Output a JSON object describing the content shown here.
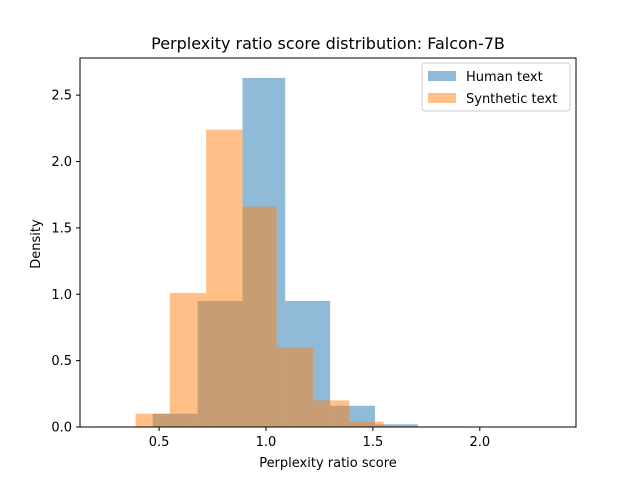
{
  "chart_data": {
    "type": "bar",
    "title": "Perplexity ratio score distribution: Falcon-7B",
    "xlabel": "Perplexity ratio score",
    "ylabel": "Density",
    "xlim": [
      0.13,
      2.45
    ],
    "ylim": [
      0,
      2.78
    ],
    "xticks": [
      0.5,
      1.0,
      1.5,
      2.0
    ],
    "xtick_labels": [
      "0.5",
      "1.0",
      "1.5",
      "2.0"
    ],
    "yticks": [
      0.0,
      0.5,
      1.0,
      1.5,
      2.0,
      2.5
    ],
    "ytick_labels": [
      "0.0",
      "0.5",
      "1.0",
      "1.5",
      "2.0",
      "2.5"
    ],
    "grid": false,
    "legend": "top-right",
    "series": [
      {
        "name": "Human text",
        "color": "#1f77b4",
        "opacity": 0.5,
        "bins": [
          {
            "x0": 0.47,
            "x1": 0.68,
            "value": 0.1
          },
          {
            "x0": 0.68,
            "x1": 0.89,
            "value": 0.95
          },
          {
            "x0": 0.89,
            "x1": 1.09,
            "value": 2.63
          },
          {
            "x0": 1.09,
            "x1": 1.3,
            "value": 0.95
          },
          {
            "x0": 1.3,
            "x1": 1.51,
            "value": 0.16
          },
          {
            "x0": 1.51,
            "x1": 1.71,
            "value": 0.02
          },
          {
            "x0": 1.71,
            "x1": 1.92,
            "value": 0.0
          },
          {
            "x0": 1.92,
            "x1": 2.13,
            "value": 0.0
          },
          {
            "x0": 2.13,
            "x1": 2.33,
            "value": 0.0
          }
        ]
      },
      {
        "name": "Synthetic text",
        "color": "#ff7f0e",
        "opacity": 0.5,
        "bins": [
          {
            "x0": 0.22,
            "x1": 0.39,
            "value": 0.005
          },
          {
            "x0": 0.39,
            "x1": 0.55,
            "value": 0.1
          },
          {
            "x0": 0.55,
            "x1": 0.72,
            "value": 1.01
          },
          {
            "x0": 0.72,
            "x1": 0.89,
            "value": 2.24
          },
          {
            "x0": 0.89,
            "x1": 1.05,
            "value": 1.66
          },
          {
            "x0": 1.05,
            "x1": 1.22,
            "value": 0.6
          },
          {
            "x0": 1.22,
            "x1": 1.39,
            "value": 0.2
          },
          {
            "x0": 1.39,
            "x1": 1.55,
            "value": 0.04
          },
          {
            "x0": 1.55,
            "x1": 1.72,
            "value": 0.005
          },
          {
            "x0": 1.72,
            "x1": 1.92,
            "value": 0.005
          }
        ]
      }
    ]
  }
}
